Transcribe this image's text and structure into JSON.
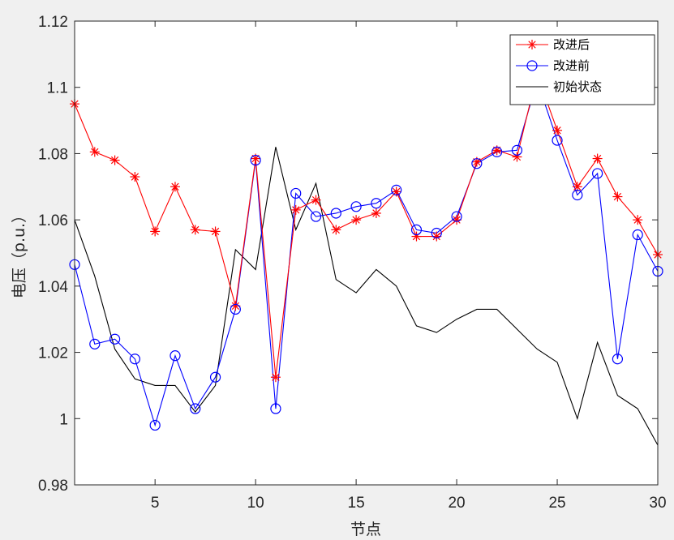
{
  "chart_data": {
    "type": "line",
    "xlabel": "节点",
    "ylabel": "电压（p.u.）",
    "xlim": [
      1,
      30
    ],
    "ylim": [
      0.98,
      1.12
    ],
    "xticks": [
      5,
      10,
      15,
      20,
      25,
      30
    ],
    "xtick_labels": [
      "5",
      "10",
      "15",
      "20",
      "25",
      "30"
    ],
    "yticks": [
      0.98,
      1,
      1.02,
      1.04,
      1.06,
      1.08,
      1.1,
      1.12
    ],
    "ytick_labels": [
      "0.98",
      "1",
      "1.02",
      "1.04",
      "1.06",
      "1.08",
      "1.1",
      "1.12"
    ],
    "grid": false,
    "legend_position": "top-right",
    "x": [
      1,
      2,
      3,
      4,
      5,
      6,
      7,
      8,
      9,
      10,
      11,
      12,
      13,
      14,
      15,
      16,
      17,
      18,
      19,
      20,
      21,
      22,
      23,
      24,
      25,
      26,
      27,
      28,
      29,
      30
    ],
    "series": [
      {
        "name": "改进后",
        "color": "#ff0000",
        "marker": "asterisk",
        "values": [
          1.095,
          1.0805,
          1.078,
          1.073,
          1.0565,
          1.07,
          1.057,
          1.0565,
          1.034,
          1.0785,
          1.0125,
          1.063,
          1.066,
          1.057,
          1.06,
          1.062,
          1.0685,
          1.055,
          1.055,
          1.06,
          1.0775,
          1.081,
          1.079,
          1.104,
          1.087,
          1.07,
          1.0785,
          1.067,
          1.06,
          1.0495
        ]
      },
      {
        "name": "改进前",
        "color": "#0000ff",
        "marker": "circle",
        "values": [
          1.0465,
          1.0225,
          1.024,
          1.018,
          0.998,
          1.019,
          1.003,
          1.0125,
          1.033,
          1.078,
          1.003,
          1.068,
          1.061,
          1.062,
          1.064,
          1.065,
          1.069,
          1.057,
          1.056,
          1.061,
          1.077,
          1.0805,
          1.081,
          1.102,
          1.084,
          1.0675,
          1.074,
          1.018,
          1.0555,
          1.0445
        ]
      },
      {
        "name": "初始状态",
        "color": "#000000",
        "marker": "none",
        "values": [
          1.06,
          1.043,
          1.021,
          1.012,
          1.01,
          1.01,
          1.002,
          1.01,
          1.051,
          1.045,
          1.082,
          1.057,
          1.071,
          1.042,
          1.038,
          1.045,
          1.04,
          1.028,
          1.026,
          1.03,
          1.033,
          1.033,
          1.027,
          1.021,
          1.017,
          1.0,
          1.023,
          1.007,
          1.003,
          0.992
        ]
      }
    ]
  }
}
